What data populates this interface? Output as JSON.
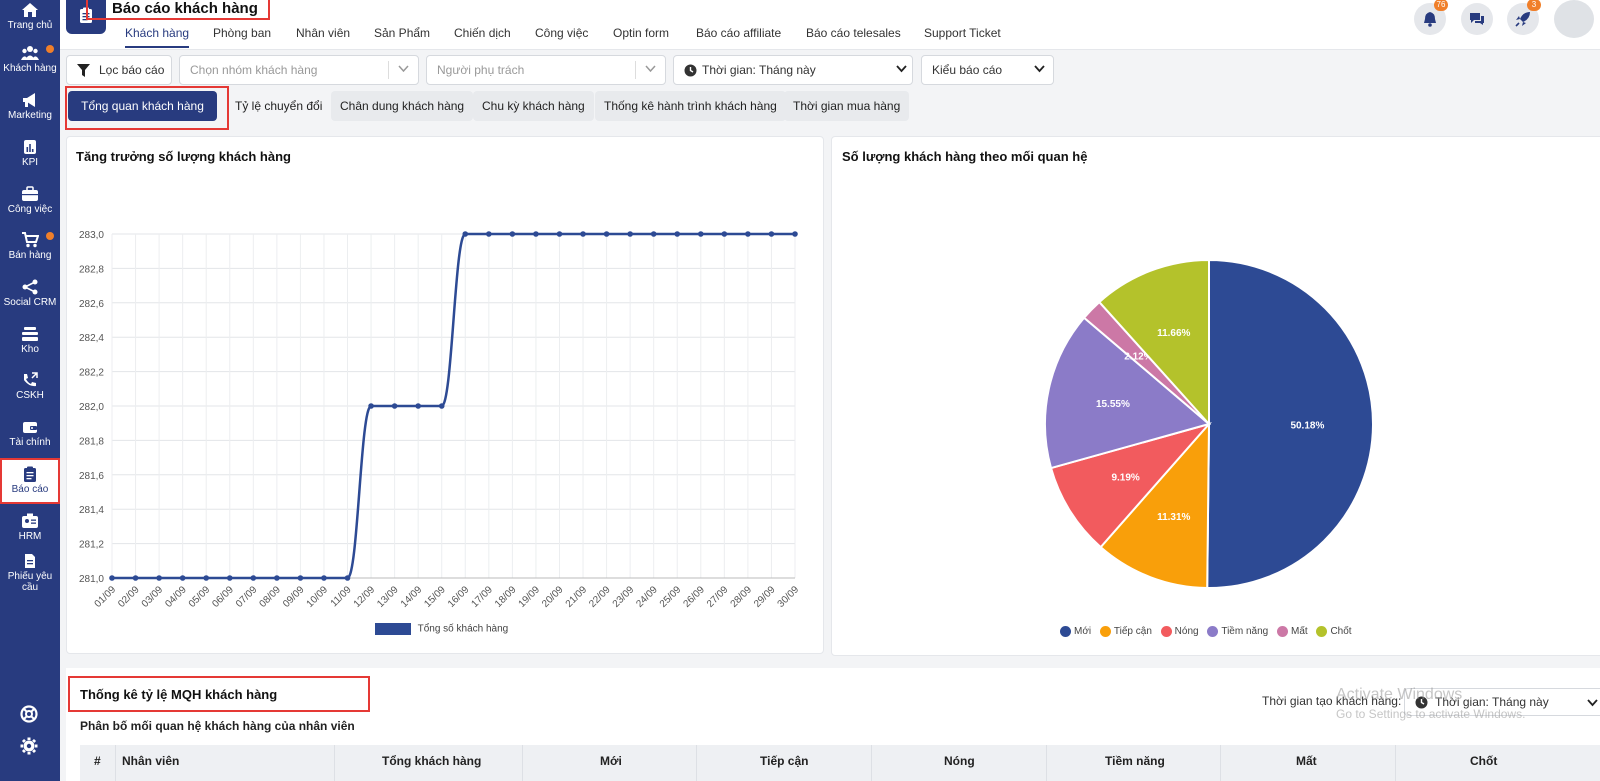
{
  "sidebar": {
    "items": [
      {
        "label": "Trang chủ",
        "icon": "home-icon",
        "dot": false
      },
      {
        "label": "Khách hàng",
        "icon": "users-icon",
        "dot": true
      },
      {
        "label": "Marketing",
        "icon": "megaphone-icon",
        "dot": false
      },
      {
        "label": "KPI",
        "icon": "chart-icon",
        "dot": false
      },
      {
        "label": "Công việc",
        "icon": "briefcase-icon",
        "dot": false
      },
      {
        "label": "Bán hàng",
        "icon": "cart-icon",
        "dot": true
      },
      {
        "label": "Social CRM",
        "icon": "share-icon",
        "dot": false
      },
      {
        "label": "Kho",
        "icon": "warehouse-icon",
        "dot": false
      },
      {
        "label": "CSKH",
        "icon": "phone-icon",
        "dot": false
      },
      {
        "label": "Tài chính",
        "icon": "wallet-icon",
        "dot": false
      },
      {
        "label": "Báo cáo",
        "icon": "clipboard-icon",
        "dot": false,
        "active": true
      },
      {
        "label": "HRM",
        "icon": "id-card-icon",
        "dot": false
      },
      {
        "label": "Phiếu yêu cầu",
        "icon": "document-icon",
        "dot": false
      }
    ],
    "bottom_icons": [
      "support-icon",
      "settings-icon"
    ]
  },
  "header": {
    "title": "Báo cáo khách hàng",
    "tabs": [
      "Khách hàng",
      "Phòng ban",
      "Nhân viên",
      "Sản Phẩm",
      "Chiến dịch",
      "Công việc",
      "Optin form",
      "Báo cáo affiliate",
      "Báo cáo telesales",
      "Support Ticket"
    ],
    "active_tab": "Khách hàng",
    "notifications_count": "76",
    "rocket_count": "3"
  },
  "filters": {
    "filter_button": "Lọc báo cáo",
    "customer_group_placeholder": "Chọn nhóm khách hàng",
    "owner_placeholder": "Người phụ trách",
    "time_label": "Thời gian: Tháng này",
    "report_type": "Kiểu báo cáo"
  },
  "report_tabs": [
    "Tổng quan khách hàng",
    "Tỷ lệ chuyển đổi",
    "Chân dung khách hàng",
    "Chu kỳ khách hàng",
    "Thống kê hành trình khách hàng",
    "Thời gian mua hàng"
  ],
  "active_report_tab": "Tổng quan khách hàng",
  "line_card": {
    "title": "Tăng trưởng số lượng khách hàng"
  },
  "pie_card": {
    "title": "Số lượng khách hàng theo mối quan hệ"
  },
  "colors": {
    "primary": "#283b7f",
    "accent_orange": "#f07f2a",
    "highlight_red": "#e53935"
  },
  "chart_data": [
    {
      "type": "line",
      "title": "Tăng trưởng số lượng khách hàng",
      "x": [
        "01/09",
        "02/09",
        "03/09",
        "04/09",
        "05/09",
        "06/09",
        "07/09",
        "08/09",
        "09/09",
        "10/09",
        "11/09",
        "12/09",
        "13/09",
        "14/09",
        "15/09",
        "16/09",
        "17/09",
        "18/09",
        "19/09",
        "20/09",
        "21/09",
        "22/09",
        "23/09",
        "24/09",
        "25/09",
        "26/09",
        "27/09",
        "28/09",
        "29/09",
        "30/09"
      ],
      "series": [
        {
          "name": "Tổng số khách hàng",
          "values": [
            281,
            281,
            281,
            281,
            281,
            281,
            281,
            281,
            281,
            281,
            281,
            282,
            282,
            282,
            282,
            283,
            283,
            283,
            283,
            283,
            283,
            283,
            283,
            283,
            283,
            283,
            283,
            283,
            283,
            283
          ],
          "color": "#2d4a94"
        }
      ],
      "yticks": [
        "281,0",
        "281,2",
        "281,4",
        "281,6",
        "281,8",
        "282,0",
        "282,2",
        "282,4",
        "282,6",
        "282,8",
        "283,0"
      ],
      "ylim": [
        281,
        283
      ],
      "grid": true,
      "legend": "bottom"
    },
    {
      "type": "pie",
      "title": "Số lượng khách hàng theo mối quan hệ",
      "slices": [
        {
          "name": "Mới",
          "value": 50.18,
          "label": "50.18%",
          "color": "#2d4a94"
        },
        {
          "name": "Tiếp cận",
          "value": 11.31,
          "label": "11.31%",
          "color": "#f99f0a"
        },
        {
          "name": "Nóng",
          "value": 9.19,
          "label": "9.19%",
          "color": "#f25b5e"
        },
        {
          "name": "Tiềm năng",
          "value": 15.55,
          "label": "15.55%",
          "color": "#8b7bc8"
        },
        {
          "name": "Mất",
          "value": 2.12,
          "label": "2.12%",
          "color": "#cc78a6"
        },
        {
          "name": "Chốt",
          "value": 11.66,
          "label": "11.66%",
          "color": "#b4c22b"
        }
      ],
      "legend": "bottom"
    }
  ],
  "section3": {
    "title": "Thống kê tỷ lệ MQH khách hàng",
    "subtitle": "Phân bố mối quan hệ khách hàng của nhân viên",
    "time_created_label": "Thời gian tạo khách hàng:",
    "time_select": "Thời gian: Tháng này",
    "table_headers": [
      "#",
      "Nhân viên",
      "Tổng khách hàng",
      "Mới",
      "Tiếp cận",
      "Nóng",
      "Tiềm năng",
      "Mất",
      "Chốt"
    ]
  },
  "watermark": {
    "line1": "Activate Windows",
    "line2": "Go to Settings to activate Windows."
  }
}
